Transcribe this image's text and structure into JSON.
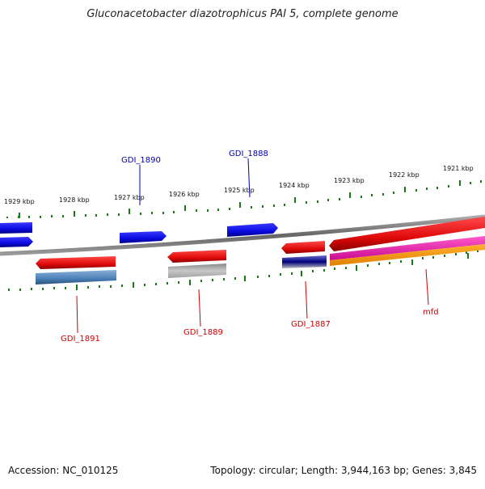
{
  "title": "Gluconacetobacter diazotrophicus PAI 5, complete genome",
  "footer": {
    "accession": "Accession: NC_010125",
    "summary": "Topology: circular; Length: 3,944,163 bp; Genes: 3,845"
  },
  "ticks": [
    "1929 kbp",
    "1928 kbp",
    "1927 kbp",
    "1926 kbp",
    "1925 kbp",
    "1924 kbp",
    "1923 kbp",
    "1922 kbp",
    "1921 kbp"
  ],
  "genes": {
    "top": [
      "GDI_1890",
      "GDI_1888"
    ],
    "bottom": [
      "GDI_1891",
      "GDI_1889",
      "GDI_1887",
      "mfd"
    ]
  },
  "colors": {
    "forward_gene": "#0a0ae6",
    "reverse_gene": "#e60a0a",
    "top_label": "#0000aa",
    "bottom_label": "#cc0000",
    "tick": "#1a7a1a",
    "backbone": "#777777"
  }
}
